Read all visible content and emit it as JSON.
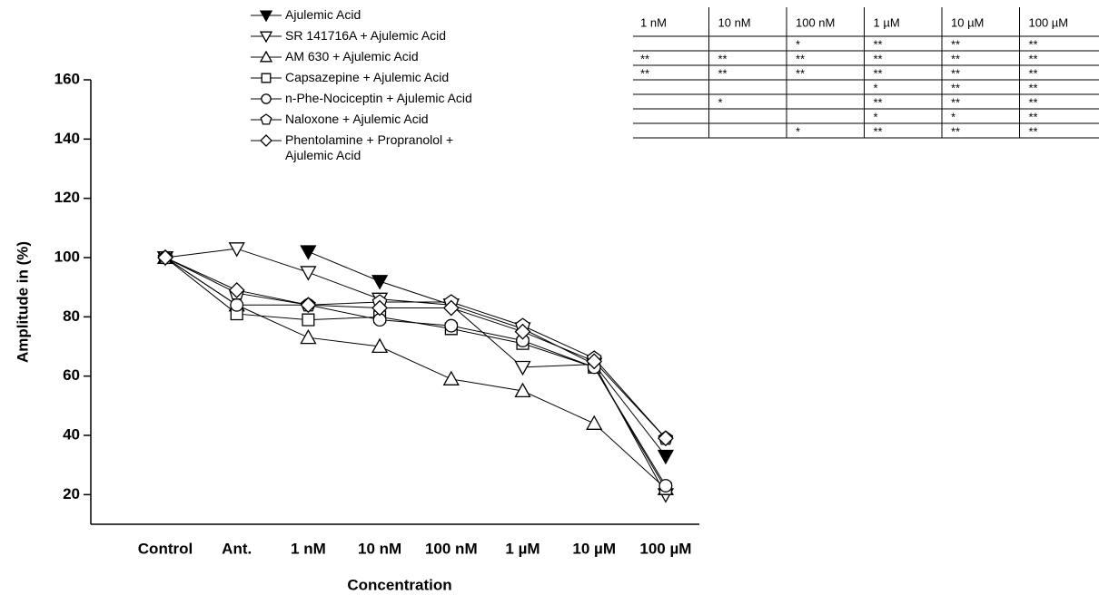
{
  "chart_data": {
    "type": "line",
    "x_label": "Concentration",
    "y_label": "Amplitude in (%)",
    "categories": [
      "Control",
      "Ant.",
      "1 nM",
      "10 nM",
      "100 nM",
      "1 µM",
      "10 µM",
      "100 µM"
    ],
    "ylim": [
      10,
      160
    ],
    "yticks": [
      20,
      40,
      60,
      80,
      100,
      120,
      140,
      160
    ],
    "series": [
      {
        "name": "Ajulemic Acid",
        "color": "#000000",
        "marker": "triangle-down-filled",
        "values": [
          100,
          null,
          102,
          92,
          84,
          76,
          64,
          33
        ]
      },
      {
        "name": "SR 141716A + Ajulemic Acid",
        "color": "#000000",
        "marker": "triangle-down",
        "values": [
          100,
          103,
          95,
          86,
          84,
          63,
          64,
          20
        ]
      },
      {
        "name": "AM 630 + Ajulemic Acid",
        "color": "#000000",
        "marker": "triangle-up",
        "values": [
          100,
          84,
          73,
          70,
          59,
          55,
          44,
          22
        ]
      },
      {
        "name": "Capsazepine + Ajulemic Acid",
        "color": "#000000",
        "marker": "square",
        "values": [
          100,
          81,
          79,
          80,
          76,
          71,
          63,
          22
        ]
      },
      {
        "name": "n-Phe-Nociceptin + Ajulemic Acid",
        "color": "#000000",
        "marker": "circle",
        "values": [
          100,
          84,
          84,
          79,
          77,
          72,
          63,
          23
        ]
      },
      {
        "name": "Naloxone + Ajulemic Acid",
        "color": "#000000",
        "marker": "pentagon",
        "values": [
          100,
          88,
          84,
          85,
          85,
          77,
          66,
          39
        ]
      },
      {
        "name": "Phentolamine + Propranolol + Ajulemic Acid",
        "color": "#000000",
        "marker": "diamond",
        "values": [
          100,
          89,
          84,
          83,
          83,
          75,
          65,
          39
        ]
      }
    ]
  },
  "table": {
    "header": [
      "1 nM",
      "10 nM",
      "100 nM",
      "1 µM",
      "10 µM",
      "100 µM"
    ],
    "rows": [
      [
        null,
        null,
        "*",
        "**",
        "**",
        "**"
      ],
      [
        "**",
        "**",
        "**",
        "**",
        "**",
        "**"
      ],
      [
        "**",
        "**",
        "**",
        "**",
        "**",
        "**"
      ],
      [
        null,
        null,
        null,
        "*",
        "**",
        "**"
      ],
      [
        null,
        "*",
        null,
        "**",
        "**",
        "**"
      ],
      [
        null,
        null,
        null,
        "*",
        "*",
        "**"
      ],
      [
        null,
        null,
        "*",
        "**",
        "**",
        "**"
      ]
    ]
  }
}
